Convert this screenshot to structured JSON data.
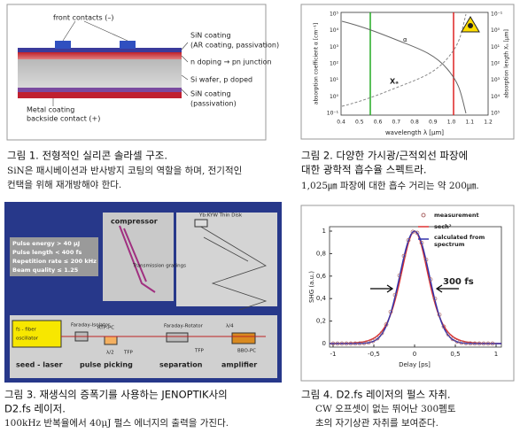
{
  "figure1": {
    "labels": [
      "front contacts (–)",
      "SiN coating",
      "(AR coating, passivation)",
      "n doping → pn junction",
      "Si wafer, p doped",
      "SiN coating",
      "(passivation)",
      "Metal coating",
      "backside contact (+)"
    ],
    "caption_title": "그림 1. 전형적인 실리콘 솔라셀 구조.",
    "caption_text": [
      "SiN은 패시베이션과 반사방지 코팅의 역할을 하며, 전기적인",
      "컨택을 위해 재개방해야 한다."
    ]
  },
  "figure2": {
    "y_label": "absorption coefficient α [cm⁻¹]",
    "y2_label": "absorption length Xₐ [µm]",
    "x_label": "wavelength λ [µm]",
    "curve_labels": [
      "α",
      "Xₐ"
    ],
    "xticks": [
      "0.4",
      "0.5",
      "0.6",
      "0.7",
      "0.8",
      "0.9",
      "1.0",
      "1.1",
      "1.2"
    ],
    "yticks": [
      "10⁵",
      "10⁴",
      "10³",
      "10²",
      "10¹",
      "10⁰",
      "10⁻¹"
    ],
    "y2ticks": [
      "10⁻¹",
      "10⁰",
      "10¹",
      "10²",
      "10³",
      "10⁴",
      "10⁵"
    ],
    "caption_title": [
      "그림 2. 다양한 가시광/근적외선 파장에",
      "대한 광학적 흡수율 스펙트라."
    ],
    "caption_text": "1,025㎛ 파장에 대한 흡수 거리는 약 200㎛."
  },
  "figure3": {
    "labels": [
      "compressor",
      "Transmission gratings",
      "Yb:KYW Thin Disk",
      "Faraday-Isolator",
      "fs - fiber",
      "oscillator",
      "RTP-PC",
      "λ/2",
      "TFP",
      "Faraday-Rotator",
      "λ/4",
      "BBO-PC",
      "TFP"
    ],
    "specs": [
      "Pulse energy > 40 µJ",
      "Pulse length < 400 fs",
      "Repetition rate ≤ 200 kHz",
      "Beam quality ≤ 1.25"
    ],
    "stages": [
      "seed - laser",
      "pulse picking",
      "separation",
      "amplifier"
    ],
    "caption_title": [
      "그림 3. 재생식의 증폭기를 사용하는 JENOPTIK사의",
      "D2.fs 레이저."
    ],
    "caption_text": "100kHz 반복율에서 40μJ 펄스 에너지의 출력을 가진다."
  },
  "figure4": {
    "legend": [
      "measurement",
      "sech²",
      "calculated from",
      "spectrum"
    ],
    "annotation": "300 fs",
    "x_label": "Delay [ps]",
    "y_label": "SHG (a.u.)",
    "xticks": [
      "-1",
      "-0,5",
      "0",
      "0,5",
      "1"
    ],
    "yticks": [
      "0",
      "0,2",
      "0,4",
      "0,6",
      "0,8",
      "1"
    ],
    "caption_title": "그림 4. D2.fs 레이저의 펄스 자취.",
    "caption_text": [
      "CW 오프셋이 없는 뛰어난 300펨토",
      "초의 자기상관 자취를 보여준다."
    ]
  }
}
